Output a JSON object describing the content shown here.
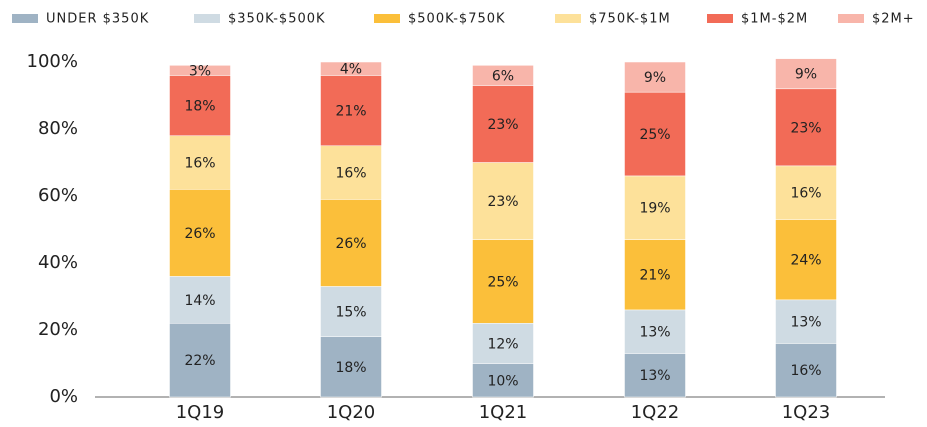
{
  "chart_data": {
    "type": "stacked_bar",
    "categories": [
      "1Q19",
      "1Q20",
      "1Q21",
      "1Q22",
      "1Q23"
    ],
    "series": [
      {
        "name": "UNDER $350K",
        "color": "#9fb3c4",
        "values": [
          22,
          18,
          10,
          13,
          16
        ],
        "value_labels": [
          "22%",
          "18%",
          "10%",
          "13%",
          "16%"
        ]
      },
      {
        "name": "$350K-$500K",
        "color": "#cfdbe3",
        "values": [
          14,
          15,
          12,
          13,
          13
        ],
        "value_labels": [
          "14%",
          "15%",
          "12%",
          "13%",
          "13%"
        ]
      },
      {
        "name": "$500K-$750K",
        "color": "#fbbf3a",
        "values": [
          26,
          26,
          25,
          21,
          24
        ],
        "value_labels": [
          "26%",
          "26%",
          "25%",
          "21%",
          "24%"
        ]
      },
      {
        "name": "$750K-$1M",
        "color": "#fde19a",
        "values": [
          16,
          16,
          23,
          19,
          16
        ],
        "value_labels": [
          "16%",
          "16%",
          "23%",
          "19%",
          "16%"
        ]
      },
      {
        "name": "$1M-$2M",
        "color": "#f26b57",
        "values": [
          18,
          21,
          23,
          25,
          23
        ],
        "value_labels": [
          "18%",
          "21%",
          "23%",
          "25%",
          "23%"
        ]
      },
      {
        "name": "$2M+",
        "color": "#f8b5aa",
        "values": [
          3,
          4,
          6,
          9,
          9
        ],
        "value_labels": [
          "3%",
          "4%",
          "6%",
          "9%",
          "9%"
        ]
      }
    ],
    "ylim": [
      0,
      100
    ],
    "yticks": [
      {
        "value": 0,
        "label": "0%"
      },
      {
        "value": 20,
        "label": "20%"
      },
      {
        "value": 40,
        "label": "40%"
      },
      {
        "value": 60,
        "label": "60%"
      },
      {
        "value": 80,
        "label": "80%"
      },
      {
        "value": 100,
        "label": "100%"
      }
    ],
    "grid": false,
    "legend": "top"
  }
}
